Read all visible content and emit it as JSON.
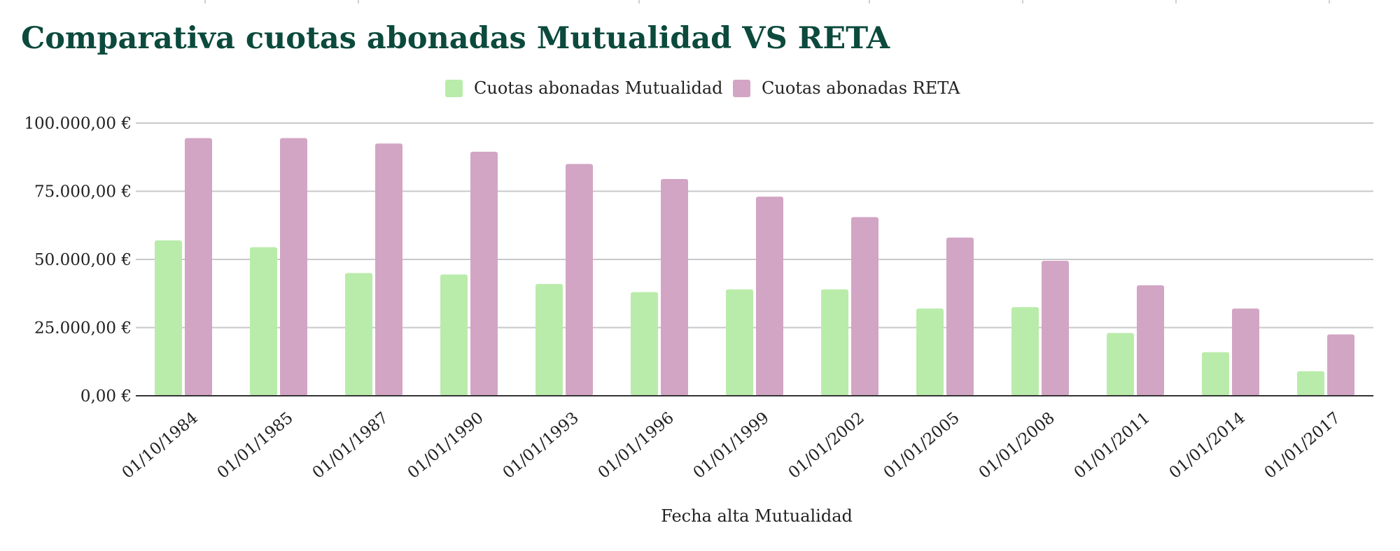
{
  "colors": {
    "title": "#0b4a3c",
    "series_mutualidad": "#b9ecaa",
    "series_reta": "#d2a5c4",
    "grid": "#c8c8cc",
    "axis": "#333333"
  },
  "chart_data": {
    "type": "bar",
    "title": "Comparativa cuotas abonadas Mutualidad VS RETA",
    "xlabel": "Fecha alta Mutualidad",
    "ylabel": "",
    "ylim": [
      0,
      100000
    ],
    "yticks": [
      0,
      25000,
      50000,
      75000,
      100000
    ],
    "ytick_labels": [
      "0,00 €",
      "25.000,00 €",
      "50.000,00 €",
      "75.000,00 €",
      "100.000,00 €"
    ],
    "grid": true,
    "legend_position": "top-center",
    "categories": [
      "01/10/1984",
      "01/01/1985",
      "01/01/1987",
      "01/01/1990",
      "01/01/1993",
      "01/01/1996",
      "01/01/1999",
      "01/01/2002",
      "01/01/2005",
      "01/01/2008",
      "01/01/2011",
      "01/01/2014",
      "01/01/2017"
    ],
    "series": [
      {
        "name": "Cuotas abonadas Mutualidad",
        "color": "#b9ecaa",
        "values": [
          57000,
          54500,
          45000,
          44500,
          41000,
          38000,
          39000,
          39000,
          32000,
          32500,
          23000,
          16000,
          9000
        ]
      },
      {
        "name": "Cuotas abonadas RETA",
        "color": "#d2a5c4",
        "values": [
          94500,
          94500,
          92500,
          89500,
          85000,
          79500,
          73000,
          65500,
          58000,
          49500,
          40500,
          32000,
          22500
        ]
      }
    ]
  }
}
